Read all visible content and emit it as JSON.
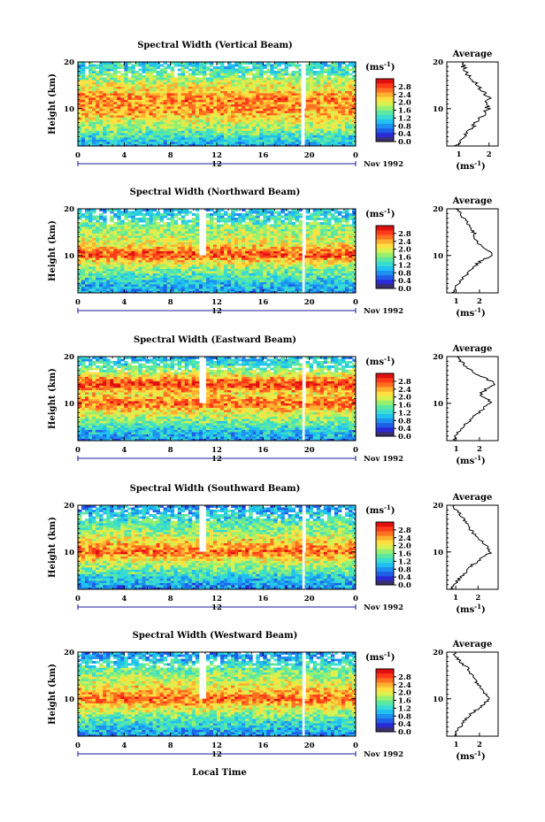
{
  "figure": {
    "date_label": "Nov 1992",
    "xlabel": "Local Time",
    "ylabel": "Height (km)",
    "cbar_unit": "(ms",
    "cbar_unit_sup": "-1",
    "avg_title": "Average",
    "avg_xlabel": "(ms",
    "avg_xlabel_sup": "-1",
    "day_marker": "12"
  },
  "colors": {
    "colormap": [
      "#3a2f6f",
      "#2b2bd6",
      "#1f5fe8",
      "#1e90f0",
      "#20c0f0",
      "#38dcd0",
      "#5ce8a0",
      "#98f070",
      "#d8f050",
      "#ffe040",
      "#ffb030",
      "#ff7020",
      "#ff3a1a",
      "#e01010"
    ],
    "gap": "#ffffff"
  },
  "chart_data": [
    {
      "type": "heatmap",
      "title": "Spectral Width (Vertical Beam)",
      "x_ticks": [
        "0",
        "4",
        "8",
        "12",
        "16",
        "20",
        "0"
      ],
      "xlim": [
        0,
        24
      ],
      "y_ticks": [
        "20",
        "10"
      ],
      "ylim": [
        2,
        20
      ],
      "colorbar_ticks": [
        "2.8",
        "2.4",
        "2.0",
        "1.6",
        "1.2",
        "0.8",
        "0.4",
        "0.0"
      ],
      "colorbar_range": [
        0.0,
        3.2
      ],
      "data_gaps_hours": [
        [
          19.3,
          19.6
        ]
      ],
      "average_profile": {
        "x_ticks": [
          "1",
          "2"
        ],
        "xlim": [
          0.6,
          2.3
        ],
        "height_km": [
          2,
          3,
          4,
          5,
          6,
          7,
          8,
          9,
          10,
          11,
          12,
          13,
          14,
          15,
          16,
          17,
          18,
          19,
          20
        ],
        "width_ms": [
          0.9,
          1.0,
          1.15,
          1.3,
          1.45,
          1.55,
          1.7,
          1.85,
          1.95,
          1.9,
          2.0,
          1.9,
          1.7,
          1.65,
          1.5,
          1.35,
          1.2,
          1.15,
          1.05
        ]
      }
    },
    {
      "type": "heatmap",
      "title": "Spectral Width (Northward Beam)",
      "x_ticks": [
        "0",
        "4",
        "8",
        "12",
        "16",
        "20",
        "0"
      ],
      "xlim": [
        0,
        24
      ],
      "y_ticks": [
        "20",
        "10"
      ],
      "ylim": [
        2,
        20
      ],
      "colorbar_ticks": [
        "2.8",
        "2.4",
        "2.0",
        "1.6",
        "1.2",
        "0.8",
        "0.4",
        "0.0"
      ],
      "colorbar_range": [
        0.0,
        3.2
      ],
      "data_gaps_hours": [
        [
          10.6,
          11.2
        ],
        [
          19.4,
          19.6
        ]
      ],
      "average_profile": {
        "x_ticks": [
          "1",
          "2"
        ],
        "xlim": [
          0.6,
          2.8
        ],
        "height_km": [
          2,
          3,
          4,
          5,
          6,
          7,
          8,
          9,
          10,
          11,
          12,
          13,
          14,
          15,
          16,
          17,
          18,
          19,
          20
        ],
        "width_ms": [
          0.9,
          1.0,
          1.1,
          1.3,
          1.45,
          1.6,
          1.85,
          2.1,
          2.6,
          2.45,
          2.1,
          1.9,
          1.8,
          1.75,
          1.65,
          1.5,
          1.3,
          1.2,
          1.0
        ]
      }
    },
    {
      "type": "heatmap",
      "title": "Spectral Width (Eastward Beam)",
      "x_ticks": [
        "0",
        "4",
        "8",
        "12",
        "16",
        "20",
        "0"
      ],
      "xlim": [
        0,
        24
      ],
      "y_ticks": [
        "20",
        "10"
      ],
      "ylim": [
        2,
        20
      ],
      "colorbar_ticks": [
        "2.8",
        "2.4",
        "2.0",
        "1.6",
        "1.2",
        "0.8",
        "0.4",
        "0.0"
      ],
      "colorbar_range": [
        0.0,
        3.2
      ],
      "data_gaps_hours": [
        [
          10.6,
          11.2
        ],
        [
          19.4,
          19.6
        ]
      ],
      "average_profile": {
        "x_ticks": [
          "1",
          "2"
        ],
        "xlim": [
          0.6,
          2.8
        ],
        "height_km": [
          2,
          3,
          4,
          5,
          6,
          7,
          8,
          9,
          10,
          11,
          12,
          13,
          14,
          15,
          16,
          17,
          18,
          19,
          20
        ],
        "width_ms": [
          0.9,
          1.0,
          1.1,
          1.3,
          1.5,
          1.7,
          1.95,
          2.2,
          2.5,
          2.3,
          2.05,
          2.3,
          2.7,
          2.4,
          2.0,
          1.7,
          1.4,
          1.2,
          1.0
        ]
      }
    },
    {
      "type": "heatmap",
      "title": "Spectral Width (Southward Beam)",
      "x_ticks": [
        "0",
        "4",
        "8",
        "12",
        "16",
        "20",
        "0"
      ],
      "xlim": [
        0,
        24
      ],
      "y_ticks": [
        "20",
        "10"
      ],
      "ylim": [
        2,
        20
      ],
      "colorbar_ticks": [
        "2.8",
        "2.4",
        "2.0",
        "1.6",
        "1.2",
        "0.8",
        "0.4",
        "0.0"
      ],
      "colorbar_range": [
        0.0,
        3.2
      ],
      "data_gaps_hours": [
        [
          10.6,
          11.2
        ],
        [
          19.4,
          19.6
        ]
      ],
      "average_profile": {
        "x_ticks": [
          "1",
          "2"
        ],
        "xlim": [
          0.6,
          2.9
        ],
        "height_km": [
          2,
          3,
          4,
          5,
          6,
          7,
          8,
          9,
          10,
          11,
          12,
          13,
          14,
          15,
          16,
          17,
          18,
          19,
          20
        ],
        "width_ms": [
          0.8,
          0.95,
          1.1,
          1.3,
          1.5,
          1.7,
          1.95,
          2.25,
          2.6,
          2.4,
          2.2,
          2.0,
          1.8,
          1.6,
          1.55,
          1.35,
          1.2,
          1.0,
          0.9
        ]
      }
    },
    {
      "type": "heatmap",
      "title": "Spectral Width (Westward Beam)",
      "x_ticks": [
        "0",
        "4",
        "8",
        "12",
        "16",
        "20",
        "0"
      ],
      "xlim": [
        0,
        24
      ],
      "y_ticks": [
        "20",
        "10"
      ],
      "ylim": [
        2,
        20
      ],
      "colorbar_ticks": [
        "2.8",
        "2.4",
        "2.0",
        "1.6",
        "1.2",
        "0.8",
        "0.4",
        "0.0"
      ],
      "colorbar_range": [
        0.0,
        3.2
      ],
      "data_gaps_hours": [
        [
          10.6,
          11.2
        ],
        [
          19.4,
          19.6
        ]
      ],
      "average_profile": {
        "x_ticks": [
          "1",
          "2"
        ],
        "xlim": [
          0.6,
          2.8
        ],
        "height_km": [
          2,
          3,
          4,
          5,
          6,
          7,
          8,
          9,
          10,
          11,
          12,
          13,
          14,
          15,
          16,
          17,
          18,
          19,
          20
        ],
        "width_ms": [
          0.9,
          1.0,
          1.15,
          1.3,
          1.5,
          1.7,
          1.95,
          2.2,
          2.5,
          2.3,
          2.1,
          1.95,
          1.8,
          1.7,
          1.55,
          1.4,
          1.2,
          1.0,
          0.9
        ]
      }
    }
  ]
}
